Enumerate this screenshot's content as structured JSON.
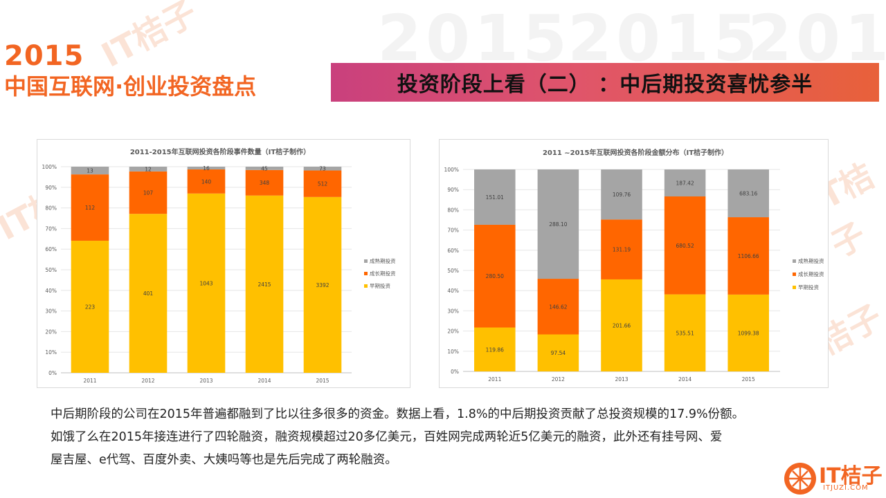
{
  "header": {
    "year": "2015",
    "title": "中国互联网·创业投资盘点",
    "banner": "投资阶段上看（二） ：中后期投资喜忧参半"
  },
  "watermark": {
    "text": "IT桔子",
    "bg_year": "2015"
  },
  "colors": {
    "early": "#FFC000",
    "growth": "#FF6600",
    "mature": "#A5A5A5",
    "accent": "#F26522"
  },
  "chart_data": [
    {
      "type": "bar",
      "stacked": "percent",
      "title": "2011-2015年互联网投资各阶段事件数量（IT桔子制作）",
      "categories": [
        "2011",
        "2012",
        "2013",
        "2014",
        "2015"
      ],
      "series": [
        {
          "name": "早期投资",
          "color": "#FFC000",
          "values": [
            223,
            401,
            1043,
            2415,
            3392
          ]
        },
        {
          "name": "成长期投资",
          "color": "#FF6600",
          "values": [
            112,
            107,
            140,
            348,
            512
          ]
        },
        {
          "name": "成熟期投资",
          "color": "#A5A5A5",
          "values": [
            13,
            12,
            16,
            45,
            73
          ]
        }
      ],
      "ytick_labels": [
        "0%",
        "10%",
        "20%",
        "30%",
        "40%",
        "50%",
        "60%",
        "70%",
        "80%",
        "90%",
        "100%"
      ],
      "ylim": [
        0,
        100
      ],
      "legend_position": "right"
    },
    {
      "type": "bar",
      "stacked": "percent",
      "title": "2011 ~2015年互联网投资各阶段金额分布（IT桔子制作）",
      "categories": [
        "2011",
        "2012",
        "2013",
        "2014",
        "2015"
      ],
      "series": [
        {
          "name": "早期投资",
          "color": "#FFC000",
          "values": [
            119.86,
            97.54,
            201.66,
            535.51,
            1099.38
          ],
          "labels": [
            "119.86",
            "97.54",
            "201.66",
            "535.51",
            "1099.38"
          ]
        },
        {
          "name": "成长期投资",
          "color": "#FF6600",
          "values": [
            280.5,
            146.62,
            131.19,
            680.52,
            1106.66
          ],
          "labels": [
            "280.50",
            "146.62",
            "131.19",
            "680.52",
            "1106.66"
          ]
        },
        {
          "name": "成熟期投资",
          "color": "#A5A5A5",
          "values": [
            151.01,
            288.1,
            109.76,
            187.42,
            683.16
          ],
          "labels": [
            "151.01",
            "288.10",
            "109.76",
            "187.42",
            "683.16"
          ]
        }
      ],
      "ytick_labels": [
        "0%",
        "10%",
        "20%",
        "30%",
        "40%",
        "50%",
        "60%",
        "70%",
        "80%",
        "90%",
        "100%"
      ],
      "ylim": [
        0,
        100
      ],
      "legend_position": "right"
    }
  ],
  "description": [
    "中后期阶段的公司在2015年普遍都融到了比以往多很多的资金。数据上看，1.8%的中后期投资贡献了总投资规模的17.9%份额。",
    "如饿了么在2015年接连进行了四轮融资，融资规模超过20多亿美元，百姓网完成两轮近5亿美元的融资，此外还有挂号网、爱",
    "屋吉屋、e代驾、百度外卖、大姨吗等也是先后完成了两轮融资。"
  ],
  "brand": {
    "name": "IT桔子",
    "url": "ITJUZI.COM"
  }
}
